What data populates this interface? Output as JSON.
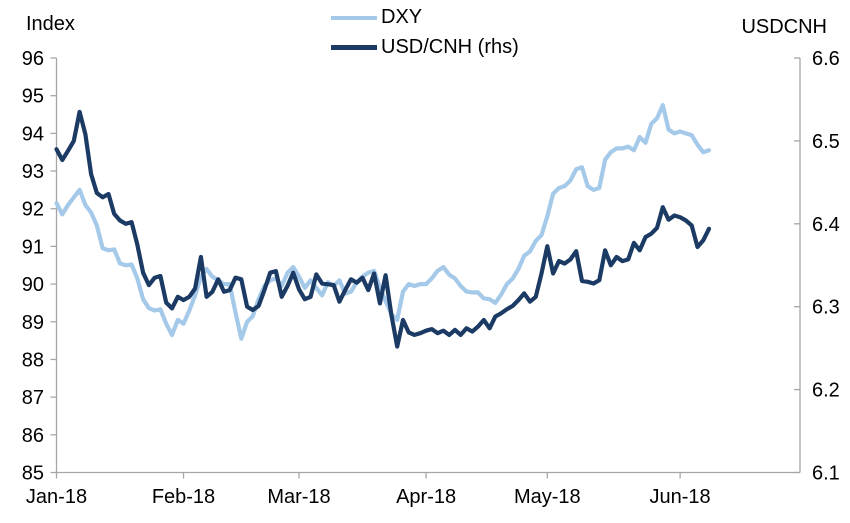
{
  "chart": {
    "background": "#FFFFFF",
    "axis_color": "#A6A6A6",
    "text_color": "#000000",
    "left_axis_title": "Index",
    "right_axis_title": "USDCNH"
  },
  "chart_data": {
    "type": "line",
    "title": "",
    "xlabel": "",
    "ylabel_left": "Index",
    "ylabel_right": "USDCNH",
    "grid": false,
    "legend_position": "top-center",
    "left_axis": {
      "title": "Index",
      "range": [
        85,
        96
      ],
      "tick_step": 1,
      "tick_labels": [
        "96",
        "95",
        "94",
        "93",
        "92",
        "91",
        "90",
        "89",
        "88",
        "87",
        "86",
        "85"
      ]
    },
    "right_axis": {
      "title": "USDCNH",
      "range": [
        6.1,
        6.6
      ],
      "tick_step": 0.1,
      "tick_labels": [
        "6.6",
        "6.5",
        "6.4",
        "6.3",
        "6.2",
        "6.1"
      ]
    },
    "x_axis": {
      "tick_labels": [
        "Jan-18",
        "Feb-18",
        "Mar-18",
        "Apr-18",
        "May-18",
        "Jun-18"
      ],
      "tick_indices": [
        0,
        22,
        42,
        64,
        85,
        108
      ],
      "n_points": 114,
      "frequency": "daily (business days), Jan 2018 - Jun 2018"
    },
    "series": [
      {
        "name": "DXY",
        "axis": "left",
        "color": "#A5C9E9",
        "stroke_width": 4.2,
        "values": [
          92.15,
          91.85,
          92.1,
          92.3,
          92.5,
          92.1,
          91.9,
          91.55,
          90.95,
          90.9,
          90.92,
          90.55,
          90.5,
          90.52,
          90.15,
          89.6,
          89.36,
          89.3,
          89.33,
          88.95,
          88.65,
          89.05,
          88.95,
          89.3,
          89.7,
          90.2,
          90.4,
          90.2,
          90.1,
          90.0,
          90.0,
          89.25,
          88.55,
          89.0,
          89.15,
          89.6,
          89.95,
          90.1,
          90.15,
          89.95,
          90.3,
          90.45,
          90.2,
          89.9,
          90.1,
          89.9,
          89.7,
          90.05,
          89.95,
          90.1,
          89.75,
          89.8,
          90.05,
          90.2,
          90.3,
          90.35,
          89.9,
          89.55,
          89.2,
          89.05,
          89.8,
          90.0,
          89.95,
          90.0,
          90.0,
          90.15,
          90.35,
          90.45,
          90.25,
          90.15,
          89.95,
          89.8,
          89.78,
          89.78,
          89.62,
          89.6,
          89.5,
          89.72,
          90.0,
          90.15,
          90.4,
          90.75,
          90.87,
          91.15,
          91.3,
          91.8,
          92.4,
          92.55,
          92.6,
          92.75,
          93.05,
          93.1,
          92.6,
          92.5,
          92.55,
          93.3,
          93.5,
          93.6,
          93.6,
          93.65,
          93.55,
          93.9,
          93.75,
          94.25,
          94.4,
          94.75,
          94.1,
          94.0,
          94.05,
          94.0,
          93.95,
          93.7,
          93.5,
          93.55
        ]
      },
      {
        "name": "USD/CNH (rhs)",
        "axis": "right",
        "color": "#1B3A64",
        "stroke_width": 4.2,
        "values": [
          6.49,
          6.477,
          6.488,
          6.5,
          6.535,
          6.508,
          6.46,
          6.437,
          6.432,
          6.436,
          6.412,
          6.404,
          6.4,
          6.402,
          6.375,
          6.341,
          6.326,
          6.335,
          6.337,
          6.305,
          6.298,
          6.312,
          6.308,
          6.312,
          6.322,
          6.36,
          6.312,
          6.318,
          6.333,
          6.318,
          6.32,
          6.335,
          6.333,
          6.3,
          6.296,
          6.301,
          6.32,
          6.341,
          6.343,
          6.312,
          6.325,
          6.341,
          6.321,
          6.309,
          6.312,
          6.339,
          6.328,
          6.327,
          6.326,
          6.306,
          6.32,
          6.333,
          6.329,
          6.335,
          6.32,
          6.34,
          6.304,
          6.338,
          6.29,
          6.252,
          6.284,
          6.269,
          6.266,
          6.268,
          6.271,
          6.273,
          6.268,
          6.271,
          6.266,
          6.272,
          6.266,
          6.274,
          6.27,
          6.276,
          6.284,
          6.274,
          6.288,
          6.292,
          6.297,
          6.301,
          6.308,
          6.316,
          6.306,
          6.312,
          6.34,
          6.373,
          6.34,
          6.355,
          6.352,
          6.357,
          6.367,
          6.331,
          6.33,
          6.328,
          6.332,
          6.368,
          6.35,
          6.36,
          6.355,
          6.357,
          6.377,
          6.368,
          6.384,
          6.388,
          6.395,
          6.42,
          6.405,
          6.41,
          6.408,
          6.404,
          6.398,
          6.372,
          6.38,
          6.394
        ]
      }
    ]
  }
}
